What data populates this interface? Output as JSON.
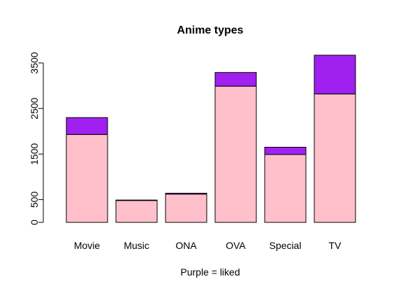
{
  "chart_data": {
    "type": "bar",
    "stacked": true,
    "title": "Anime types",
    "xlabel": "Purple = liked",
    "ylabel": "",
    "categories": [
      "Movie",
      "Music",
      "ONA",
      "OVA",
      "Special",
      "TV"
    ],
    "series": [
      {
        "values": [
          1930,
          480,
          620,
          2990,
          1490,
          2820
        ]
      },
      {
        "values": [
          370,
          10,
          20,
          300,
          160,
          850
        ]
      }
    ],
    "ylim": [
      0,
      3500
    ],
    "yticks": [
      0,
      500,
      1500,
      2500,
      3500
    ],
    "grid": false,
    "colors": {
      "base": "#ffc0cb",
      "liked": "#a020f0"
    }
  }
}
